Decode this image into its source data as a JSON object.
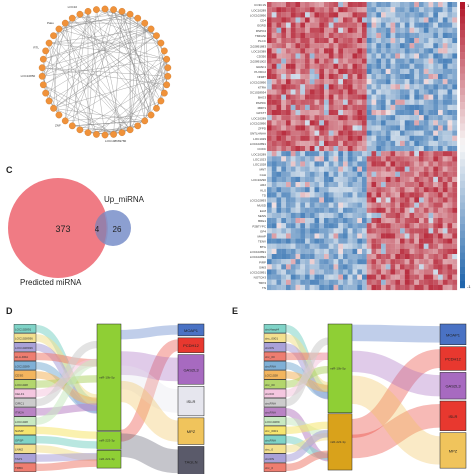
{
  "panels": {
    "c": {
      "letter": "C"
    },
    "d": {
      "letter": "D"
    },
    "e": {
      "letter": "E"
    }
  },
  "network": {
    "visible_labels": [
      "LOC10850",
      "RTL",
      "Paku",
      "LOC10",
      "ZNF",
      "LOC108669780"
    ]
  },
  "heatmap": {
    "row_labels": [
      "CC3C1S",
      "LOC10289",
      "LOC102890",
      "CD4",
      "EGRD",
      "RSPO4",
      "TMFANI",
      "PLCC",
      "LOC102891883",
      "LOC10389",
      "CD350",
      "LOC102891002",
      "GRAF1",
      "PLXDC2",
      "NNMT",
      "LOC102890",
      "KTRA",
      "LOC1028934",
      "BAG3",
      "PAPRC",
      "MRP1",
      "GFST7",
      "LOC10289",
      "LOC102890",
      "ZFPD",
      "SNTLHNAA",
      "LOC1029",
      "LOC102891",
      "CCDC",
      "LOC10289",
      "LOC1023",
      "LOC1028",
      "MNT",
      "CAH",
      "LOC10290",
      "AR2",
      "KLS",
      "TD",
      "LOC102893",
      "MUSD",
      "ELM",
      "SENS",
      "BRE1",
      "P2BTYPC",
      "GP4",
      "MAAP",
      "TENV",
      "BTG",
      "LOC102891",
      "LOC102892",
      "PIRP",
      "SIM3",
      "LOC102891",
      "NOTCH3",
      "TRP4",
      "TN"
    ],
    "scale_max": "1",
    "scale_min": "-1"
  },
  "venn": {
    "left_label": "Predicted miRNA",
    "right_label": "Up_miRNA",
    "left_only": "373",
    "overlap": "4",
    "right_only": "26"
  },
  "sankey_d": {
    "sources": [
      "LOC102891",
      "LOC1028936",
      "LOC1028936",
      "HLA-DRA",
      "LOC10289",
      "CD3G",
      "LOC1028",
      "CELF1",
      "CIRC1",
      "ITM2A",
      "LOC1028",
      "NAMP",
      "GPSP",
      "LNM2",
      "TAP1",
      "TRBC"
    ],
    "mirnas": [
      "miR-10b-5p",
      "miR-223-3p",
      "miR-221-3p"
    ],
    "targets": [
      "MOAP1",
      "PCDH12",
      "GAS2L3",
      "ISLR",
      "MPZ",
      "TAGLN"
    ]
  },
  "sankey_e": {
    "sources": [
      "circHaspl4",
      "circ_0001",
      "circRN",
      "circ_00",
      "circRNA",
      "LOC1028",
      "circ_00",
      "circDO",
      "circRNA",
      "circRNA",
      "LOC10289",
      "circ_0001",
      "circRNA",
      "circ_0",
      "circRN",
      "circ_0"
    ],
    "mirnas": [
      "miR-10b-5p",
      "miR-223-3p"
    ],
    "targets": [
      "MOAP1",
      "PCDH12",
      "GAS2L3",
      "ISLR",
      "MPZ"
    ]
  },
  "colors": {
    "node_orange": "#f0923a",
    "heat_red": "#b2182b",
    "heat_blue": "#2166ac",
    "venn_left": "#f07b84",
    "venn_right": "#7f95cc",
    "mirna_green": "#8fcf35",
    "mirna_gold": "#d9a21b",
    "target_moap1": "#4a72c4",
    "target_pcdh12": "#e8382f",
    "target_gas2l3": "#a76ac0",
    "target_islr": "#e6e6ee",
    "target_mpz": "#f0c45c",
    "target_tagln": "#5a5a6a"
  }
}
